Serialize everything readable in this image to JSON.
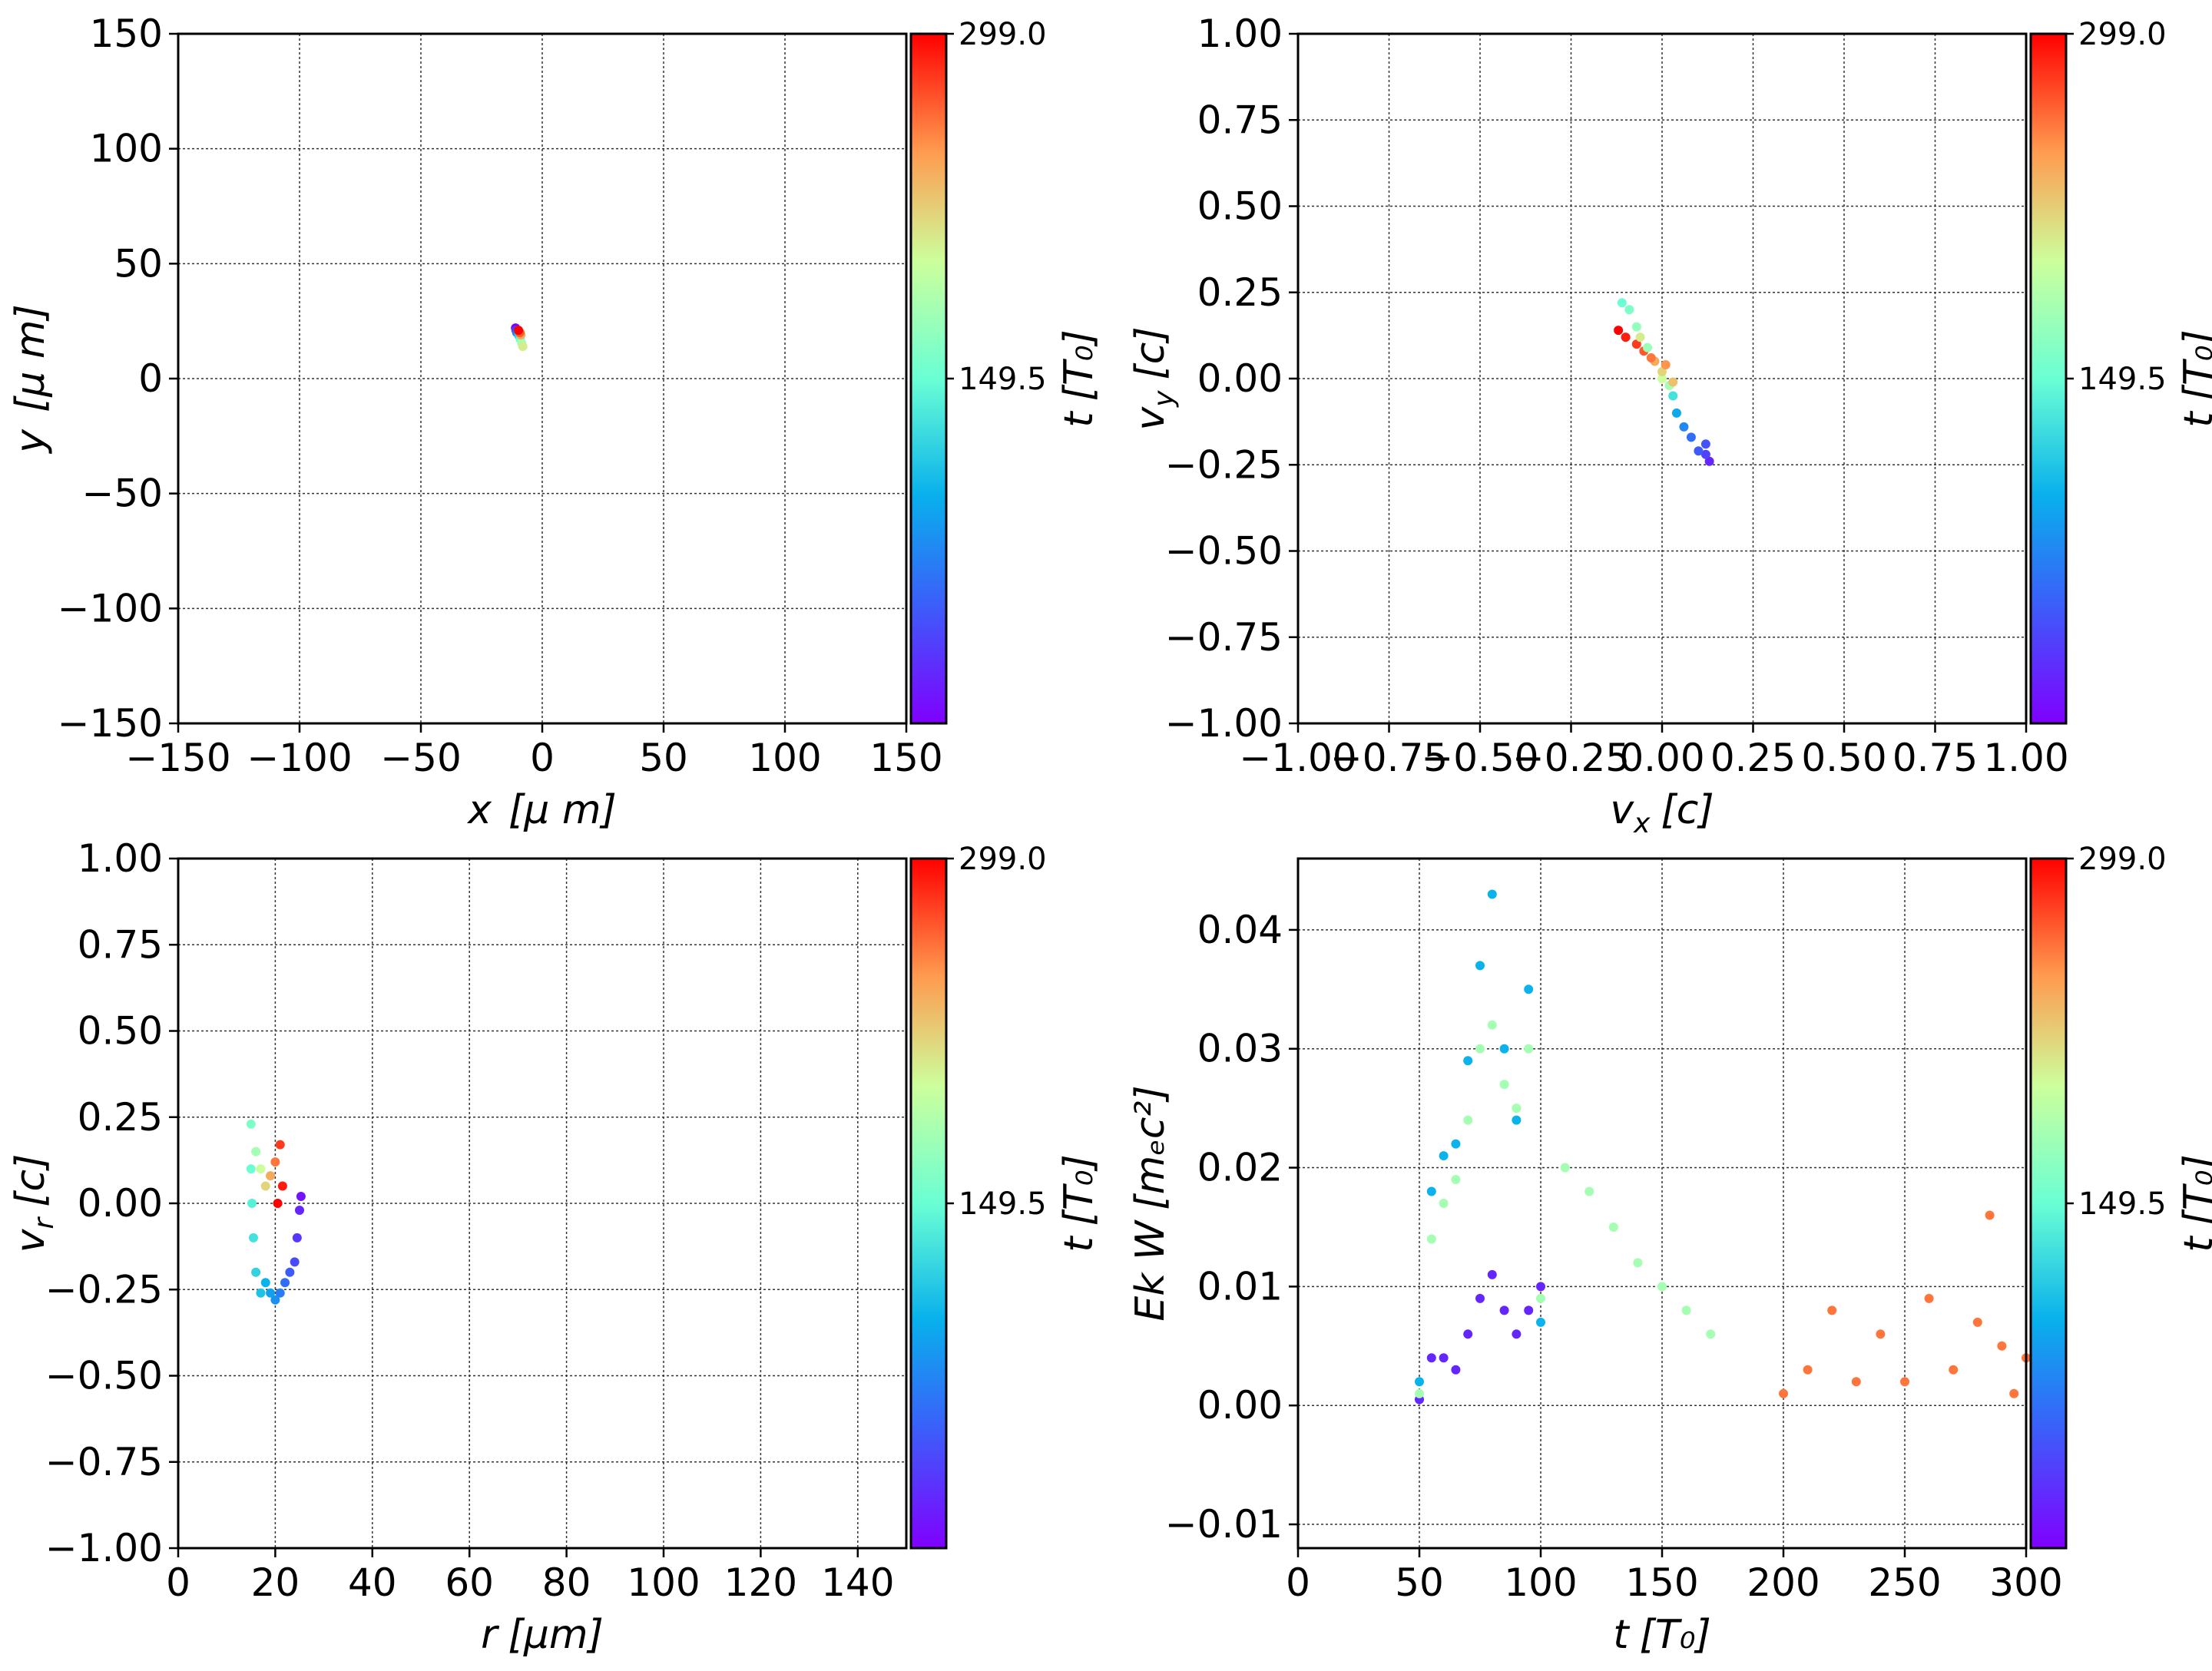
{
  "colormap": "rainbow",
  "colorbar": {
    "label": "t [T₀]",
    "label_main": "t",
    "label_unit": "[T₀]",
    "min": 0,
    "max": 299.0,
    "ticks": [
      149.5,
      299.0
    ],
    "tick_labels": [
      "149.5",
      "299.0"
    ]
  },
  "chart_data": [
    {
      "id": "position",
      "type": "scatter",
      "xlabel": "x  [μ m]",
      "xlabel_main": "x",
      "xlabel_unit": "[μ m]",
      "ylabel": "y  [μ m]",
      "ylabel_main": "y",
      "ylabel_unit": "[μ m]",
      "xlim": [
        -150,
        150
      ],
      "ylim": [
        -150,
        150
      ],
      "xticks": [
        -150,
        -100,
        -50,
        0,
        50,
        100,
        150
      ],
      "yticks": [
        -150,
        -100,
        -50,
        0,
        50,
        100,
        150
      ],
      "xtick_labels": [
        "−150",
        "−100",
        "−50",
        "0",
        "50",
        "100",
        "150"
      ],
      "ytick_labels": [
        "−150",
        "−100",
        "−50",
        "0",
        "50",
        "100",
        "150"
      ],
      "grid": true,
      "color_by": "t [T₀]",
      "points": [
        [
          -11,
          22,
          0
        ],
        [
          -10.8,
          21,
          30
        ],
        [
          -10.5,
          20,
          60
        ],
        [
          -10,
          19.5,
          90
        ],
        [
          -9.5,
          18.5,
          120
        ],
        [
          -9,
          17,
          150
        ],
        [
          -8.5,
          15.5,
          180
        ],
        [
          -8,
          14,
          210
        ],
        [
          -8.8,
          19,
          240
        ],
        [
          -9.2,
          20,
          270
        ],
        [
          -9.8,
          21,
          299
        ]
      ]
    },
    {
      "id": "velocity",
      "type": "scatter",
      "xlabel": "v_x [c]",
      "xlabel_main": "v",
      "xlabel_sub": "x",
      "xlabel_unit": "[c]",
      "ylabel": "v_y [c]",
      "ylabel_main": "v",
      "ylabel_sub": "y",
      "ylabel_unit": "[c]",
      "xlim": [
        -1.0,
        1.0
      ],
      "ylim": [
        -1.0,
        1.0
      ],
      "xticks": [
        -1.0,
        -0.75,
        -0.5,
        -0.25,
        0.0,
        0.25,
        0.5,
        0.75,
        1.0
      ],
      "yticks": [
        -1.0,
        -0.75,
        -0.5,
        -0.25,
        0.0,
        0.25,
        0.5,
        0.75,
        1.0
      ],
      "xtick_labels": [
        "−1.00",
        "−0.75",
        "−0.50",
        "−0.25",
        "0.00",
        "0.25",
        "0.50",
        "0.75",
        "1.00"
      ],
      "ytick_labels": [
        "−1.00",
        "−0.75",
        "−0.50",
        "−0.25",
        "0.00",
        "0.25",
        "0.50",
        "0.75",
        "1.00"
      ],
      "grid": true,
      "color_by": "t [T₀]",
      "points": [
        [
          0.13,
          -0.24,
          20
        ],
        [
          0.12,
          -0.22,
          35
        ],
        [
          0.1,
          -0.21,
          50
        ],
        [
          0.12,
          -0.19,
          45
        ],
        [
          0.08,
          -0.17,
          60
        ],
        [
          0.06,
          -0.14,
          75
        ],
        [
          0.04,
          -0.1,
          95
        ],
        [
          0.03,
          -0.05,
          130
        ],
        [
          0.02,
          -0.02,
          180
        ],
        [
          0.0,
          0.0,
          200
        ],
        [
          0.0,
          0.02,
          220
        ],
        [
          -0.02,
          0.05,
          240
        ],
        [
          -0.03,
          0.06,
          260
        ],
        [
          -0.05,
          0.08,
          270
        ],
        [
          -0.07,
          0.1,
          280
        ],
        [
          -0.1,
          0.12,
          290
        ],
        [
          -0.12,
          0.14,
          299
        ],
        [
          -0.11,
          0.22,
          150
        ],
        [
          -0.09,
          0.2,
          160
        ],
        [
          -0.07,
          0.15,
          170
        ],
        [
          -0.04,
          0.09,
          175
        ],
        [
          0.01,
          0.04,
          250
        ],
        [
          -0.06,
          0.12,
          210
        ],
        [
          0.03,
          -0.01,
          230
        ]
      ]
    },
    {
      "id": "radial",
      "type": "scatter",
      "xlabel": "r [μm]",
      "xlabel_main": "r",
      "xlabel_unit": "[μm]",
      "ylabel": "v_r [c]",
      "ylabel_main": "v",
      "ylabel_sub": "r",
      "ylabel_unit": "[c]",
      "xlim": [
        0,
        150
      ],
      "ylim": [
        -1.0,
        1.0
      ],
      "xticks": [
        0,
        20,
        40,
        60,
        80,
        100,
        120,
        140
      ],
      "yticks": [
        -1.0,
        -0.75,
        -0.5,
        -0.25,
        0.0,
        0.25,
        0.5,
        0.75,
        1.0
      ],
      "xtick_labels": [
        "0",
        "20",
        "40",
        "60",
        "80",
        "100",
        "120",
        "140"
      ],
      "ytick_labels": [
        "−1.00",
        "−0.75",
        "−0.50",
        "−0.25",
        "0.00",
        "0.25",
        "0.50",
        "0.75",
        "1.00"
      ],
      "grid": true,
      "color_by": "t [T₀]",
      "points": [
        [
          25.3,
          0.02,
          10
        ],
        [
          25,
          -0.02,
          20
        ],
        [
          24.5,
          -0.1,
          30
        ],
        [
          24,
          -0.17,
          40
        ],
        [
          23,
          -0.2,
          50
        ],
        [
          22,
          -0.23,
          60
        ],
        [
          21,
          -0.26,
          70
        ],
        [
          20,
          -0.28,
          80
        ],
        [
          19,
          -0.26,
          90
        ],
        [
          18,
          -0.23,
          100
        ],
        [
          17,
          -0.26,
          110
        ],
        [
          16,
          -0.2,
          120
        ],
        [
          15.5,
          -0.1,
          130
        ],
        [
          15.2,
          0.0,
          140
        ],
        [
          15,
          0.1,
          150
        ],
        [
          15,
          0.23,
          160
        ],
        [
          16,
          0.15,
          180
        ],
        [
          17,
          0.1,
          200
        ],
        [
          18,
          0.05,
          220
        ],
        [
          19,
          0.08,
          240
        ],
        [
          20,
          0.12,
          260
        ],
        [
          21,
          0.17,
          280
        ],
        [
          21.5,
          0.05,
          290
        ],
        [
          20.5,
          0.0,
          299
        ]
      ]
    },
    {
      "id": "energy",
      "type": "scatter",
      "xlabel": "t [T₀]",
      "xlabel_main": "t",
      "xlabel_unit": "[T₀]",
      "ylabel": "Ek W [m_e c²]",
      "ylabel_main": "Ek W",
      "ylabel_unit": "[mₑc²]",
      "xlim": [
        0,
        300
      ],
      "ylim": [
        -0.012,
        0.046
      ],
      "xticks": [
        0,
        50,
        100,
        150,
        200,
        250,
        300
      ],
      "yticks": [
        -0.01,
        0.0,
        0.01,
        0.02,
        0.03,
        0.04
      ],
      "xtick_labels": [
        "0",
        "50",
        "100",
        "150",
        "200",
        "250",
        "300"
      ],
      "ytick_labels": [
        "−0.01",
        "0.00",
        "0.01",
        "0.02",
        "0.03",
        "0.04"
      ],
      "grid": true,
      "color_by": "t [T₀]",
      "series_color_t": [
        20,
        100,
        180,
        260
      ],
      "series": [
        {
          "x": [
            50,
            55,
            60,
            65,
            70,
            75,
            80,
            85,
            90,
            95,
            100
          ],
          "values": [
            0.0005,
            0.004,
            0.004,
            0.003,
            0.006,
            0.009,
            0.011,
            0.008,
            0.006,
            0.008,
            0.01
          ]
        },
        {
          "x": [
            50,
            55,
            60,
            65,
            70,
            75,
            80,
            85,
            90,
            95,
            100
          ],
          "values": [
            0.002,
            0.018,
            0.021,
            0.022,
            0.029,
            0.037,
            0.043,
            0.03,
            0.024,
            0.035,
            0.007
          ]
        },
        {
          "x": [
            50,
            55,
            60,
            65,
            70,
            75,
            80,
            85,
            90,
            95,
            100,
            110,
            120,
            130,
            140,
            150,
            160,
            170
          ],
          "values": [
            0.001,
            0.014,
            0.017,
            0.019,
            0.024,
            0.03,
            0.032,
            0.027,
            0.025,
            0.03,
            0.009,
            0.02,
            0.018,
            0.015,
            0.012,
            0.01,
            0.008,
            0.006
          ]
        },
        {
          "x": [
            200,
            210,
            220,
            230,
            240,
            250,
            260,
            270,
            280,
            285,
            290,
            295,
            300
          ],
          "values": [
            0.001,
            0.003,
            0.008,
            0.002,
            0.006,
            0.002,
            0.009,
            0.003,
            0.007,
            0.016,
            0.005,
            0.001,
            0.004
          ]
        }
      ]
    }
  ]
}
